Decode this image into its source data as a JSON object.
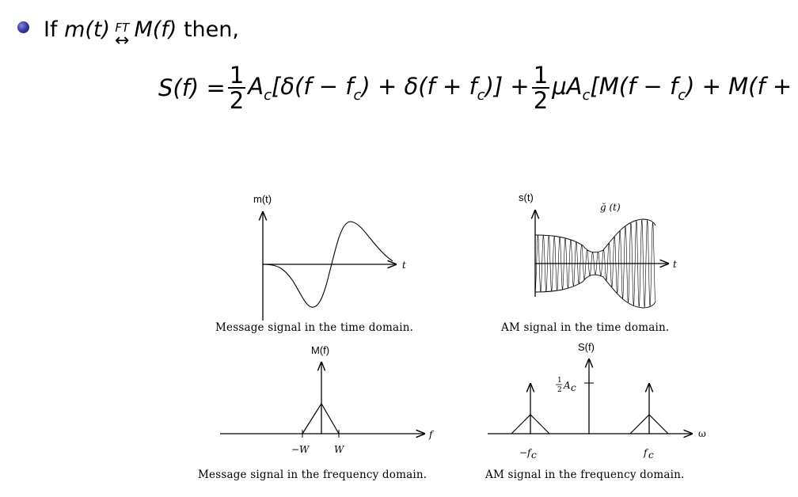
{
  "bullet": {
    "prefix": "If",
    "lhs": "m(t)",
    "op_top": "FT",
    "op_arrow": "↔",
    "rhs": "M(f)",
    "suffix": "then,"
  },
  "equation": {
    "lhs": "S(f) =",
    "frac1_num": "1",
    "frac1_den": "2",
    "term1": "A",
    "term1_sub": "c",
    "term1_rest": "[δ(f − f",
    "term1_sub2": "c",
    "term1_mid": ") + δ(f + f",
    "term1_sub3": "c",
    "term1_end": ")] +",
    "frac2_num": "1",
    "frac2_den": "2",
    "term2": "μA",
    "term2_sub": "c",
    "term2_rest": "[M(f − f",
    "term2_sub2": "c",
    "term2_mid": ") + M(f + f"
  },
  "plots": {
    "top_left": {
      "ylabel": "m(t)",
      "xlabel": "t",
      "caption": "Message signal in the time domain."
    },
    "top_right": {
      "ylabel": "s(t)",
      "xlabel": "t",
      "envelope_label": "ğ (t)",
      "caption": "AM signal in the time domain."
    },
    "bottom_left": {
      "ylabel": "M(f)",
      "xlabel": "f",
      "tick_neg": "−W",
      "tick_pos": "W",
      "caption": "Message signal in the frequency domain."
    },
    "bottom_right": {
      "ylabel": "S(f)",
      "xlabel": "ω",
      "tick_neg": "−f",
      "tick_neg_sub": "c",
      "tick_pos": "f",
      "tick_pos_sub": "c",
      "impulse_label": "A",
      "impulse_sub": "c",
      "caption": "AM signal in the frequency domain."
    }
  }
}
